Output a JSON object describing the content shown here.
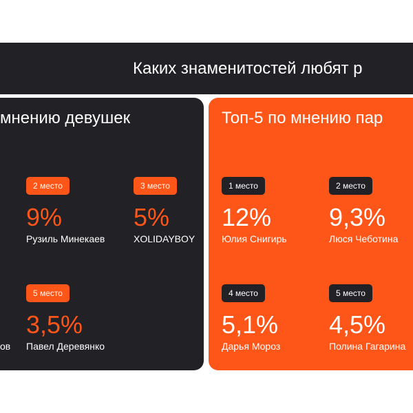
{
  "header": {
    "title": "Каких знаменитостей любят р"
  },
  "panels": [
    {
      "title": "мнению девушек",
      "items": [
        {
          "place": "2 место",
          "percent": "9%",
          "name": "Рузиль Минекаев"
        },
        {
          "place": "3 место",
          "percent": "5%",
          "name": "XOLIDAYBOY"
        },
        {
          "name": "ов"
        },
        {
          "place": "5 место",
          "percent": "3,5%",
          "name": "Павел Деревянко"
        }
      ]
    },
    {
      "title": "Топ-5 по мнению пар",
      "items": [
        {
          "place": "1 место",
          "percent": "12%",
          "name": "Юлия Снигирь"
        },
        {
          "place": "2 место",
          "percent": "9,3%",
          "name": "Люся Чеботина"
        },
        {
          "place": "4 место",
          "percent": "5,1%",
          "name": "Дарья Мороз"
        },
        {
          "place": "5 место",
          "percent": "4,5%",
          "name": "Полина Гагарина"
        }
      ]
    }
  ]
}
